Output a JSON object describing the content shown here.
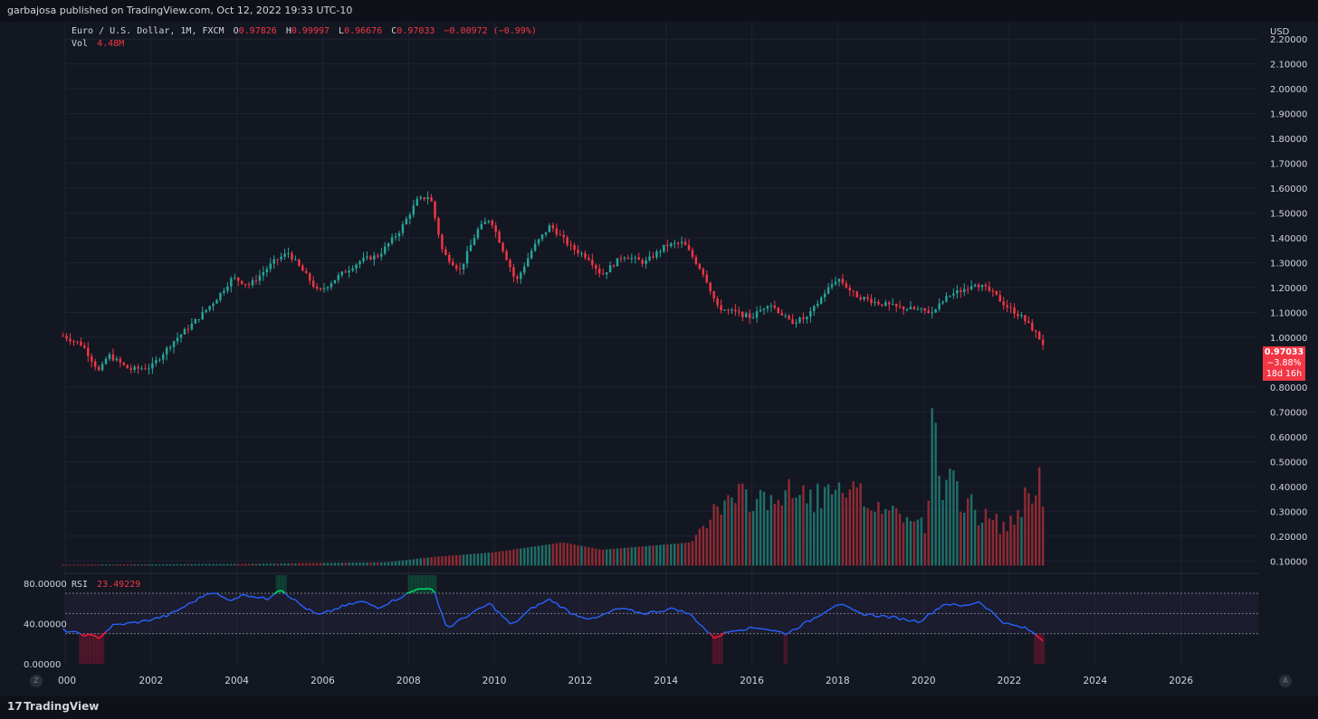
{
  "header": {
    "published": "garbajosa published on TradingView.com, Oct 12, 2022 19:33 UTC-10"
  },
  "legend": {
    "symbol": "Euro / U.S. Dollar, 1M, FXCM",
    "o_label": "O",
    "o_value": "0.97826",
    "h_label": "H",
    "h_value": "0.99997",
    "l_label": "L",
    "l_value": "0.96676",
    "c_label": "C",
    "c_value": "0.97033",
    "change": "−0.00972 (−0.99%)",
    "vol_label": "Vol",
    "vol_value": "4.48M"
  },
  "price_scale": {
    "currency": "USD",
    "ticks": [
      "2.20000",
      "2.10000",
      "2.00000",
      "1.90000",
      "1.80000",
      "1.70000",
      "1.60000",
      "1.50000",
      "1.40000",
      "1.30000",
      "1.20000",
      "1.10000",
      "1.00000",
      "0.80000",
      "0.70000",
      "0.60000",
      "0.50000",
      "0.40000",
      "0.30000",
      "0.20000",
      "0.10000"
    ]
  },
  "price_badge": {
    "price": "0.97033",
    "change_pct": "−3.88%",
    "countdown": "18d 16h"
  },
  "rsi": {
    "label": "RSI",
    "value": "23.49229",
    "ticks": [
      "80.00000",
      "40.00000",
      "0.00000"
    ]
  },
  "time_axis": {
    "labels": [
      "000",
      "2002",
      "2004",
      "2006",
      "2008",
      "2010",
      "2012",
      "2014",
      "2016",
      "2018",
      "2020",
      "2022",
      "2024",
      "2026"
    ]
  },
  "buttons": {
    "zoom": "Z",
    "auto": "A"
  },
  "footer": {
    "brand": "TradingView",
    "logo": "17"
  },
  "colors": {
    "background": "#131722",
    "up": "#26a69a",
    "down": "#f23645",
    "rsi_line": "#2962ff",
    "rsi_overbought": "#00e676",
    "rsi_oversold": "#ff1744"
  },
  "chart_data": {
    "type": "candlestick",
    "symbol": "Euro / U.S. Dollar",
    "interval": "1M",
    "x_range": [
      2000.0,
      2027.8
    ],
    "y_range": [
      0.05,
      2.27
    ],
    "close_path": [
      [
        1999.9,
        1.01
      ],
      [
        2000.4,
        0.97
      ],
      [
        2000.8,
        0.86
      ],
      [
        2001.0,
        0.93
      ],
      [
        2001.5,
        0.87
      ],
      [
        2002.0,
        0.88
      ],
      [
        2002.5,
        0.98
      ],
      [
        2003.0,
        1.06
      ],
      [
        2003.5,
        1.15
      ],
      [
        2003.9,
        1.24
      ],
      [
        2004.3,
        1.21
      ],
      [
        2004.9,
        1.31
      ],
      [
        2005.2,
        1.34
      ],
      [
        2005.7,
        1.23
      ],
      [
        2005.9,
        1.18
      ],
      [
        2006.4,
        1.25
      ],
      [
        2006.9,
        1.31
      ],
      [
        2007.3,
        1.33
      ],
      [
        2007.8,
        1.43
      ],
      [
        2008.2,
        1.55
      ],
      [
        2008.5,
        1.57
      ],
      [
        2008.8,
        1.34
      ],
      [
        2009.2,
        1.27
      ],
      [
        2009.6,
        1.43
      ],
      [
        2009.9,
        1.48
      ],
      [
        2010.4,
        1.27
      ],
      [
        2010.5,
        1.22
      ],
      [
        2010.9,
        1.36
      ],
      [
        2011.3,
        1.45
      ],
      [
        2011.8,
        1.36
      ],
      [
        2012.2,
        1.32
      ],
      [
        2012.5,
        1.25
      ],
      [
        2013.0,
        1.33
      ],
      [
        2013.5,
        1.3
      ],
      [
        2014.0,
        1.37
      ],
      [
        2014.4,
        1.38
      ],
      [
        2014.9,
        1.25
      ],
      [
        2015.2,
        1.12
      ],
      [
        2015.6,
        1.1
      ],
      [
        2016.0,
        1.08
      ],
      [
        2016.4,
        1.14
      ],
      [
        2016.9,
        1.06
      ],
      [
        2017.3,
        1.08
      ],
      [
        2017.7,
        1.18
      ],
      [
        2018.0,
        1.24
      ],
      [
        2018.4,
        1.17
      ],
      [
        2018.9,
        1.14
      ],
      [
        2019.4,
        1.12
      ],
      [
        2019.9,
        1.11
      ],
      [
        2020.2,
        1.1
      ],
      [
        2020.6,
        1.17
      ],
      [
        2020.9,
        1.19
      ],
      [
        2021.2,
        1.22
      ],
      [
        2021.6,
        1.18
      ],
      [
        2021.9,
        1.13
      ],
      [
        2022.3,
        1.08
      ],
      [
        2022.6,
        1.02
      ],
      [
        2022.8,
        0.97
      ]
    ],
    "volume_path": [
      [
        1999.9,
        0.0
      ],
      [
        2004.0,
        0.003
      ],
      [
        2007.5,
        0.01
      ],
      [
        2008.5,
        0.03
      ],
      [
        2010.0,
        0.05
      ],
      [
        2011.6,
        0.09
      ],
      [
        2012.5,
        0.06
      ],
      [
        2014.6,
        0.09
      ],
      [
        2014.9,
        0.18
      ],
      [
        2015.5,
        0.26
      ],
      [
        2017.0,
        0.28
      ],
      [
        2018.5,
        0.27
      ],
      [
        2019.5,
        0.2
      ],
      [
        2020.1,
        0.15
      ],
      [
        2020.2,
        0.63
      ],
      [
        2020.4,
        0.25
      ],
      [
        2020.6,
        0.33
      ],
      [
        2021.2,
        0.22
      ],
      [
        2021.5,
        0.18
      ],
      [
        2022.0,
        0.15
      ],
      [
        2022.4,
        0.28
      ],
      [
        2022.7,
        0.36
      ],
      [
        2022.8,
        0.2
      ]
    ],
    "volume_units": "indicative price-scale units",
    "rsi_path": [
      [
        1999.9,
        34
      ],
      [
        2000.3,
        30
      ],
      [
        2000.8,
        26
      ],
      [
        2001.1,
        38
      ],
      [
        2001.8,
        42
      ],
      [
        2002.4,
        48
      ],
      [
        2003.0,
        62
      ],
      [
        2003.4,
        72
      ],
      [
        2003.8,
        63
      ],
      [
        2004.2,
        69
      ],
      [
        2004.7,
        64
      ],
      [
        2005.0,
        75
      ],
      [
        2005.5,
        58
      ],
      [
        2005.9,
        48
      ],
      [
        2006.4,
        56
      ],
      [
        2006.9,
        62
      ],
      [
        2007.3,
        56
      ],
      [
        2007.8,
        66
      ],
      [
        2008.3,
        76
      ],
      [
        2008.6,
        72
      ],
      [
        2008.9,
        35
      ],
      [
        2009.3,
        46
      ],
      [
        2009.9,
        60
      ],
      [
        2010.4,
        38
      ],
      [
        2010.9,
        56
      ],
      [
        2011.3,
        64
      ],
      [
        2011.8,
        50
      ],
      [
        2012.3,
        44
      ],
      [
        2012.9,
        55
      ],
      [
        2013.5,
        50
      ],
      [
        2014.2,
        55
      ],
      [
        2014.6,
        48
      ],
      [
        2015.1,
        26
      ],
      [
        2015.6,
        34
      ],
      [
        2016.2,
        36
      ],
      [
        2016.8,
        30
      ],
      [
        2017.4,
        44
      ],
      [
        2018.0,
        60
      ],
      [
        2018.5,
        50
      ],
      [
        2019.3,
        46
      ],
      [
        2019.9,
        42
      ],
      [
        2020.5,
        60
      ],
      [
        2020.9,
        57
      ],
      [
        2021.3,
        62
      ],
      [
        2021.9,
        40
      ],
      [
        2022.4,
        35
      ],
      [
        2022.8,
        23.49
      ]
    ],
    "rsi_overbought": 70,
    "rsi_middle": 50,
    "rsi_oversold": 30,
    "rsi_range": [
      0,
      88
    ]
  }
}
